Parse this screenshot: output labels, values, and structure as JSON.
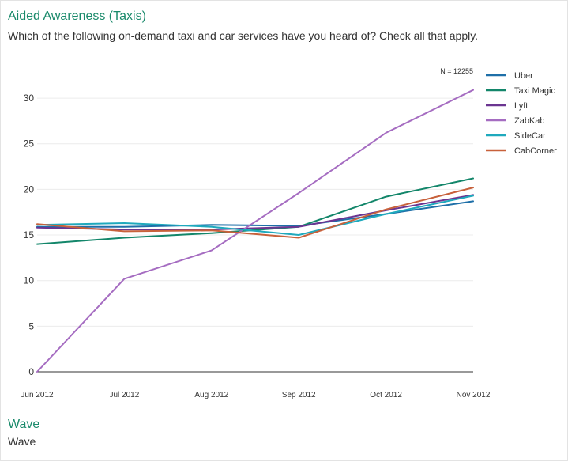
{
  "header": {
    "title": "Aided Awareness (Taxis)",
    "question": "Which of the following on-demand taxi and car services have you heard of? Check all that apply."
  },
  "footer": {
    "section_title": "Wave",
    "section_subtitle": "Wave"
  },
  "chart_data": {
    "type": "line",
    "sample_size_label": "N = 12255",
    "x": [
      "Jun 2012",
      "Jul 2012",
      "Aug 2012",
      "Sep 2012",
      "Oct 2012",
      "Nov 2012"
    ],
    "ylim": [
      0,
      32
    ],
    "yticks": [
      0,
      5,
      10,
      15,
      20,
      25,
      30
    ],
    "legend_position": "right",
    "series": [
      {
        "name": "Uber",
        "color": "#1e6fa8",
        "values": [
          15.9,
          15.9,
          16.1,
          16.0,
          17.3,
          18.7
        ]
      },
      {
        "name": "Taxi Magic",
        "color": "#13866a",
        "values": [
          14.0,
          14.7,
          15.2,
          15.9,
          19.2,
          21.2
        ]
      },
      {
        "name": "Lyft",
        "color": "#6b3591",
        "values": [
          15.8,
          15.6,
          15.6,
          15.9,
          17.7,
          19.4
        ]
      },
      {
        "name": "ZabKab",
        "color": "#a56cc1",
        "values": [
          0.0,
          10.2,
          13.3,
          19.6,
          26.2,
          30.9
        ]
      },
      {
        "name": "SideCar",
        "color": "#1fa9bd",
        "values": [
          16.1,
          16.3,
          15.9,
          15.0,
          17.3,
          19.3
        ]
      },
      {
        "name": "CabCorner",
        "color": "#c8613b",
        "values": [
          16.2,
          15.4,
          15.5,
          14.7,
          17.8,
          20.2
        ]
      }
    ]
  }
}
